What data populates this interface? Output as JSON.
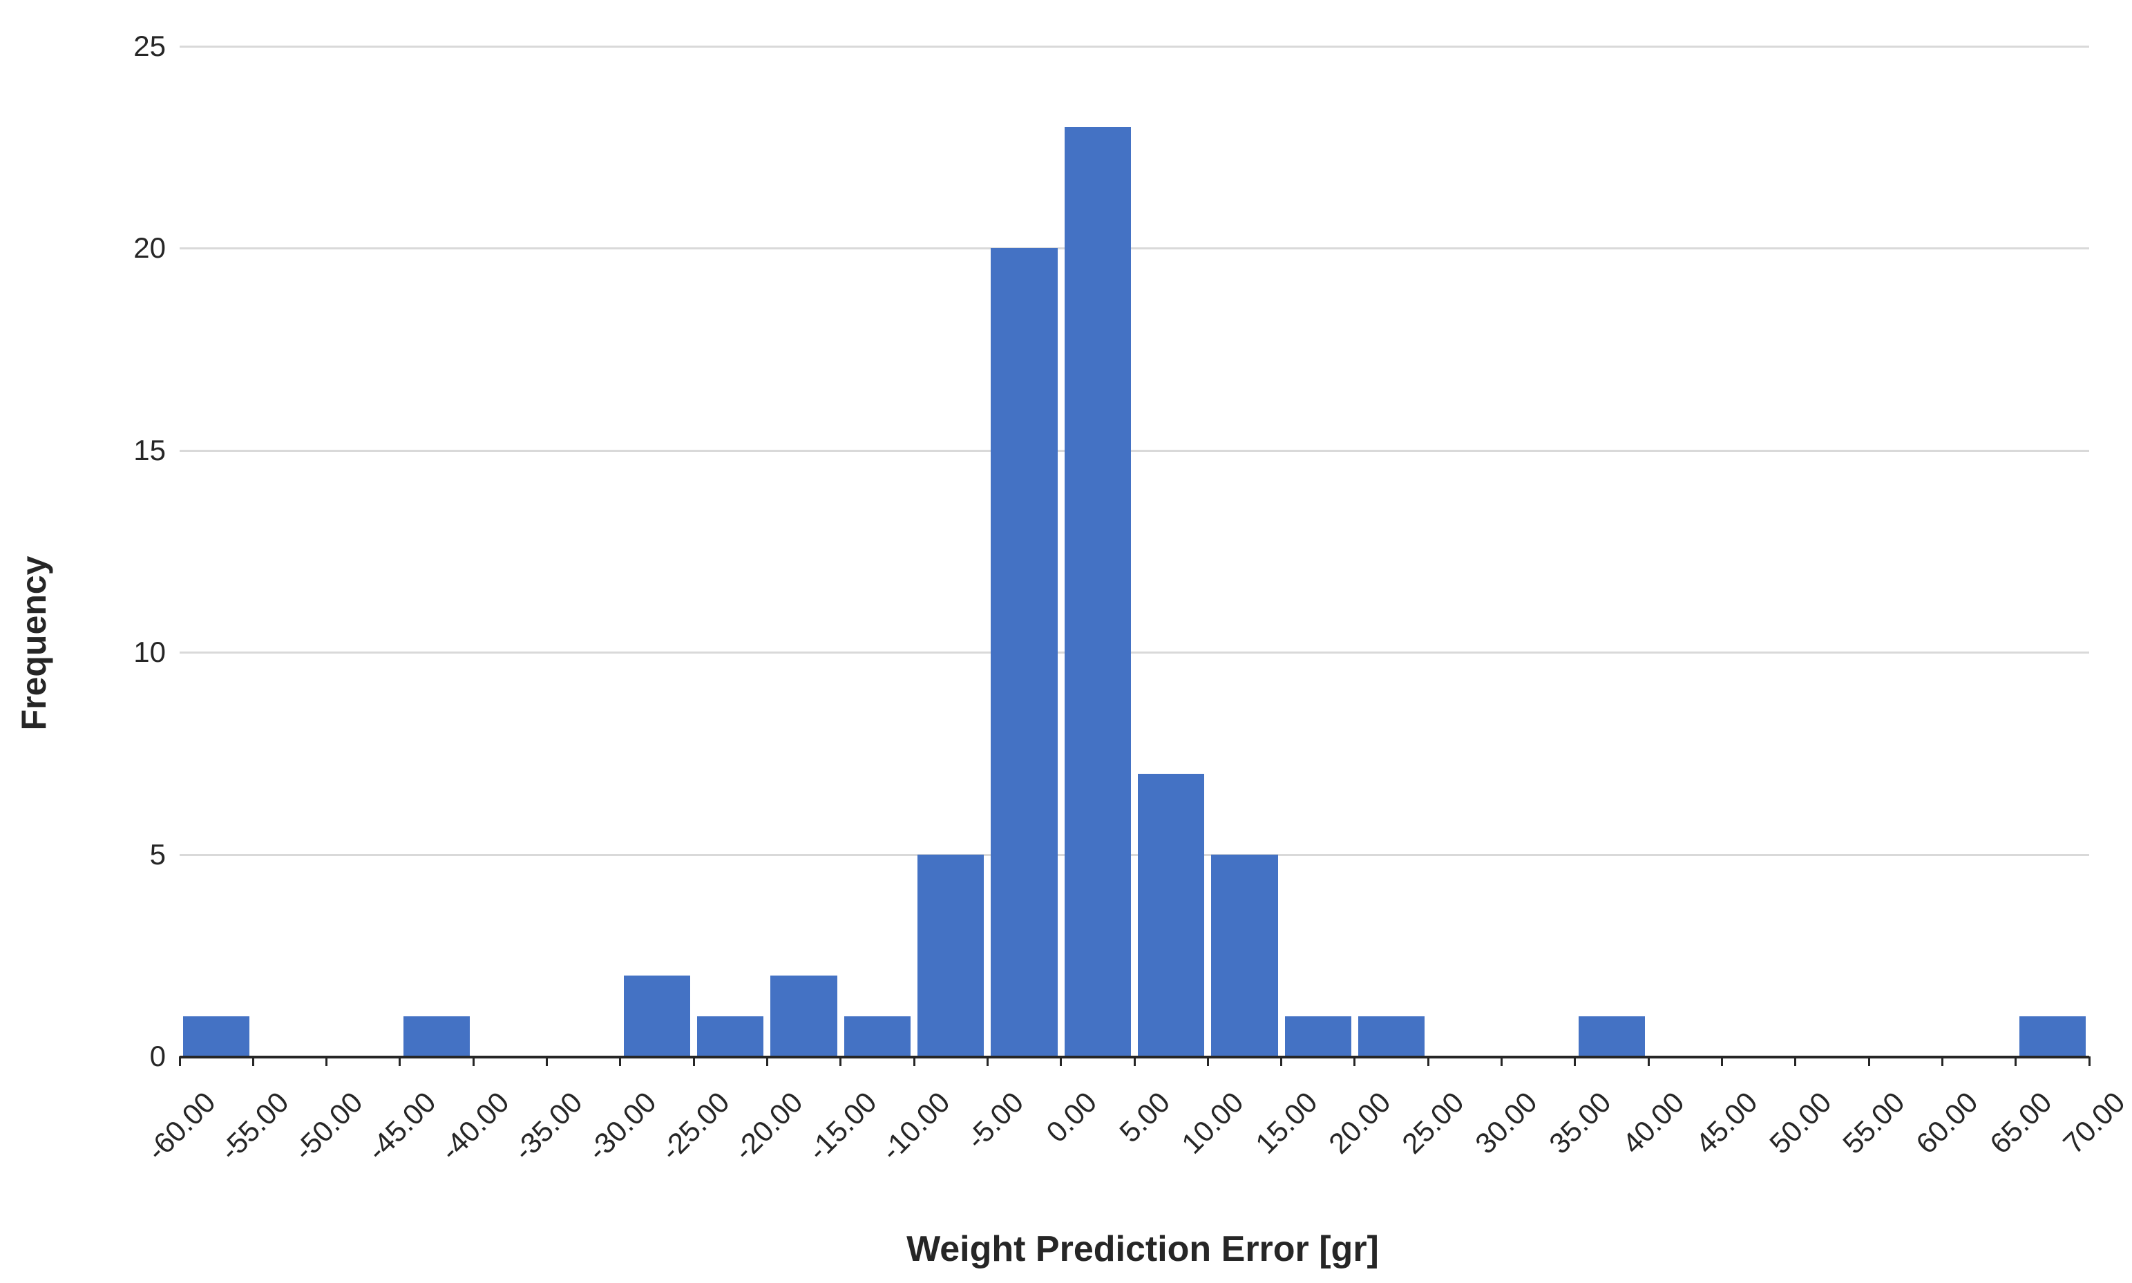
{
  "chart_data": {
    "type": "bar",
    "subtype": "histogram",
    "title": "",
    "xlabel": "Weight Prediction Error [gr]",
    "ylabel": "Frequency",
    "bin_edges": [
      "-60.00",
      "-55.00",
      "-50.00",
      "-45.00",
      "-40.00",
      "-35.00",
      "-30.00",
      "-25.00",
      "-20.00",
      "-15.00",
      "-10.00",
      "-5.00",
      "0.00",
      "5.00",
      "10.00",
      "15.00",
      "20.00",
      "25.00",
      "30.00",
      "35.00",
      "40.00",
      "45.00",
      "50.00",
      "55.00",
      "60.00",
      "65.00",
      "70.00"
    ],
    "values": [
      1,
      0,
      0,
      1,
      0,
      0,
      2,
      1,
      2,
      1,
      5,
      20,
      23,
      7,
      5,
      1,
      1,
      0,
      0,
      1,
      0,
      0,
      0,
      0,
      0,
      1
    ],
    "ylim": [
      0,
      25
    ],
    "yticks": [
      "0",
      "5",
      "10",
      "15",
      "20",
      "25"
    ],
    "grid": true,
    "legend": "none",
    "bar_color": "#4472C4",
    "gridline_color": "#D9D9D9",
    "axis_color": "#262626",
    "text_color": "#262626"
  }
}
